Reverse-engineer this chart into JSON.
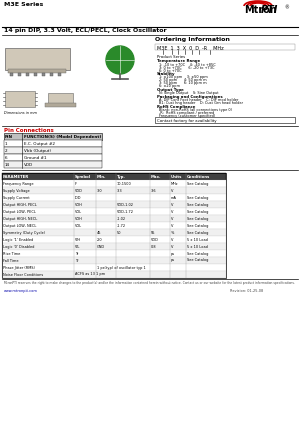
{
  "bg_color": "#ffffff",
  "title_series": "M3E Series",
  "title_main": "14 pin DIP, 3.3 Volt, ECL/PECL, Clock Oscillator",
  "brand_left": "Mtron",
  "brand_right": "PTI",
  "red_accent": "#cc0000",
  "table_header_bg": "#c0c0c0",
  "ordering_title": "Ordering Information",
  "pin_connections_title": "Pin Connections",
  "pin_headers": [
    "PIN",
    "FUNCTION(S) (Model Dependent)"
  ],
  "pin_data": [
    [
      "1",
      "E.C. Output #2"
    ],
    [
      "2",
      "Vbb (Output)"
    ],
    [
      "6",
      "Ground #1"
    ],
    [
      "14",
      "VDD"
    ]
  ],
  "param_col_headers": [
    "PARAMETER",
    "Symbol",
    "Min.",
    "Typ.",
    "Max.",
    "Units",
    "Conditions"
  ],
  "param_rows": [
    [
      "Frequency Range",
      "F",
      "",
      "10-1500",
      "",
      "MHz",
      "See Catalog"
    ],
    [
      "Supply Voltage",
      "VDD",
      "3.0",
      "3.3",
      "3.6",
      "V",
      ""
    ],
    [
      "Supply Current",
      "IDD",
      "",
      "",
      "",
      "mA",
      "See Catalog"
    ],
    [
      "Output HIGH, PECL",
      "VOH",
      "",
      "VDD-1.02",
      "",
      "V",
      "See Catalog"
    ],
    [
      "Output LOW, PECL",
      "VOL",
      "",
      "VDD-1.72",
      "",
      "V",
      "See Catalog"
    ],
    [
      "Output HIGH, NECL",
      "VOH",
      "",
      "-1.02",
      "",
      "V",
      "See Catalog"
    ],
    [
      "Output LOW, NECL",
      "VOL",
      "",
      "-1.72",
      "",
      "V",
      "See Catalog"
    ],
    [
      "Symmetry (Duty Cycle)",
      "",
      "45",
      "50",
      "55",
      "%",
      "See Catalog"
    ],
    [
      "Logic '1' Enabled",
      "VIH",
      "2.0",
      "",
      "VDD",
      "V",
      "5 x 10 Load"
    ],
    [
      "Logic '0' Disabled",
      "VIL",
      "GND",
      "",
      "0.8",
      "V",
      "5 x 10 Load"
    ],
    [
      "Rise Time",
      "Tr",
      "",
      "",
      "",
      "ps",
      "See Catalog"
    ],
    [
      "Fall Time",
      "Tf",
      "",
      "",
      "",
      "ps",
      "See Catalog"
    ],
    [
      "Phase Jitter (RMS)",
      "",
      "1 ps(typ) of oscillator typ 1",
      "",
      "",
      "",
      ""
    ],
    [
      "Noise Floor Conditions",
      "ACFS as 13 1 pm",
      "",
      "",
      "",
      "",
      ""
    ]
  ],
  "footer_text": "MtronPTI reserves the right to make changes to the product(s) and/or the information contained herein without notice. Contact us or our website for the latest product information specifications.",
  "footer_website": "www.mtronpti.com",
  "revision": "Revision: 01-25-08"
}
